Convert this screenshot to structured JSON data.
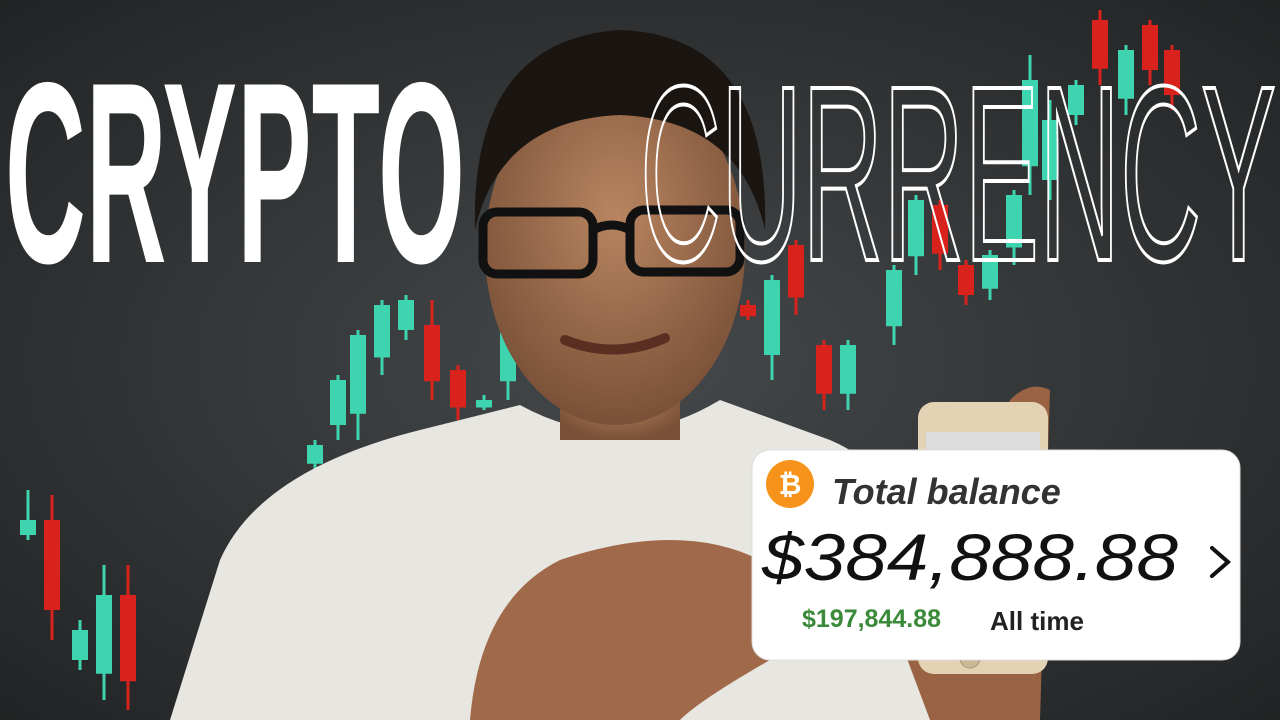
{
  "headline": {
    "solid": "CRYPTO",
    "outline": "CURRENCY"
  },
  "card": {
    "icon": "₿",
    "title": "Total balance",
    "balance": "$384,888.88",
    "gain": "$197,844.88",
    "period": "All time"
  }
}
